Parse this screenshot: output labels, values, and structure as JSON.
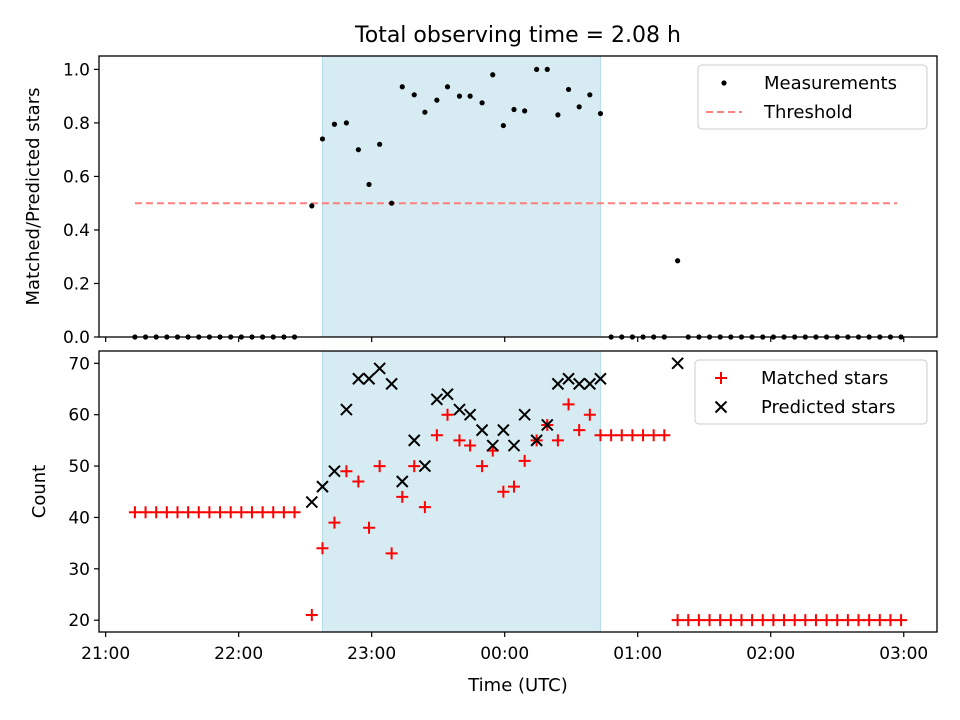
{
  "figure_title": "Total observing time = 2.08 h",
  "xlabel": "Time (UTC)",
  "xticks": [
    21,
    22,
    23,
    24,
    25,
    26,
    27
  ],
  "xtick_labels": [
    "21:00",
    "22:00",
    "23:00",
    "00:00",
    "01:00",
    "02:00",
    "03:00"
  ],
  "colors": {
    "shade": "#add8e6",
    "threshold": "#ff7f7f",
    "measurement": "#000000",
    "matched": "#ff0000",
    "predicted": "#000000"
  },
  "chart_data": [
    {
      "type": "scatter",
      "ylabel": "Matched/Predicted stars",
      "xlim": [
        20.95,
        27.25
      ],
      "ylim": [
        0,
        1.05
      ],
      "yticks": [
        0.0,
        0.2,
        0.4,
        0.6,
        0.8,
        1.0
      ],
      "ytick_labels": [
        "0.0",
        "0.2",
        "0.4",
        "0.6",
        "0.8",
        "1.0"
      ],
      "shaded_span": [
        22.63,
        24.72
      ],
      "legend_position": "top-right",
      "legend": [
        "Measurements",
        "Threshold"
      ],
      "threshold": {
        "name": "Threshold",
        "value": 0.5,
        "x": [
          21.22,
          26.95
        ]
      },
      "series": [
        {
          "name": "Measurements",
          "x": [
            21.22,
            21.3,
            21.38,
            21.46,
            21.54,
            21.62,
            21.7,
            21.78,
            21.86,
            21.94,
            22.02,
            22.1,
            22.18,
            22.26,
            22.34,
            22.42,
            22.55,
            22.63,
            22.72,
            22.81,
            22.9,
            22.98,
            23.06,
            23.15,
            23.23,
            23.32,
            23.4,
            23.49,
            23.57,
            23.66,
            23.74,
            23.83,
            23.91,
            23.99,
            24.07,
            24.15,
            24.24,
            24.32,
            24.4,
            24.48,
            24.56,
            24.64,
            24.72,
            24.8,
            24.88,
            24.96,
            25.04,
            25.12,
            25.2,
            25.3,
            25.38,
            25.46,
            25.54,
            25.62,
            25.7,
            25.78,
            25.86,
            25.94,
            26.02,
            26.1,
            26.18,
            26.26,
            26.34,
            26.42,
            26.5,
            26.58,
            26.66,
            26.74,
            26.82,
            26.9,
            26.98
          ],
          "y": [
            0,
            0,
            0,
            0,
            0,
            0,
            0,
            0,
            0,
            0,
            0,
            0,
            0,
            0,
            0,
            0,
            0.49,
            0.74,
            0.795,
            0.8,
            0.7,
            0.57,
            0.72,
            0.5,
            0.935,
            0.905,
            0.84,
            0.885,
            0.935,
            0.9,
            0.9,
            0.875,
            0.98,
            0.79,
            0.85,
            0.845,
            1.0,
            1.0,
            0.83,
            0.925,
            0.86,
            0.905,
            0.835,
            0,
            0,
            0,
            0,
            0,
            0,
            0.285,
            0,
            0,
            0,
            0,
            0,
            0,
            0,
            0,
            0,
            0,
            0,
            0,
            0,
            0,
            0,
            0,
            0,
            0,
            0,
            0,
            0
          ]
        }
      ]
    },
    {
      "type": "scatter",
      "ylabel": "Count",
      "xlim": [
        20.95,
        27.25
      ],
      "ylim": [
        17.7,
        72.4
      ],
      "yticks": [
        20,
        30,
        40,
        50,
        60,
        70
      ],
      "ytick_labels": [
        "20",
        "30",
        "40",
        "50",
        "60",
        "70"
      ],
      "shaded_span": [
        22.63,
        24.72
      ],
      "legend_position": "top-right",
      "legend": [
        "Matched stars",
        "Predicted stars"
      ],
      "series": [
        {
          "name": "Matched stars",
          "marker": "plus",
          "x": [
            21.22,
            21.3,
            21.38,
            21.46,
            21.54,
            21.62,
            21.7,
            21.78,
            21.86,
            21.94,
            22.02,
            22.1,
            22.18,
            22.26,
            22.34,
            22.42,
            22.55,
            22.63,
            22.72,
            22.81,
            22.9,
            22.98,
            23.06,
            23.15,
            23.23,
            23.32,
            23.4,
            23.49,
            23.57,
            23.66,
            23.74,
            23.83,
            23.91,
            23.99,
            24.07,
            24.15,
            24.24,
            24.32,
            24.4,
            24.48,
            24.56,
            24.64,
            24.72,
            24.8,
            24.88,
            24.96,
            25.04,
            25.12,
            25.2,
            25.3,
            25.38,
            25.46,
            25.54,
            25.62,
            25.7,
            25.78,
            25.86,
            25.94,
            26.02,
            26.1,
            26.18,
            26.26,
            26.34,
            26.42,
            26.5,
            26.58,
            26.66,
            26.74,
            26.82,
            26.9,
            26.98
          ],
          "y": [
            41,
            41,
            41,
            41,
            41,
            41,
            41,
            41,
            41,
            41,
            41,
            41,
            41,
            41,
            41,
            41,
            21,
            34,
            39,
            49,
            47,
            38,
            50,
            33,
            44,
            50,
            42,
            56,
            60,
            55,
            54,
            50,
            53,
            45,
            46,
            51,
            55,
            58,
            55,
            62,
            57,
            60,
            56,
            56,
            56,
            56,
            56,
            56,
            56,
            20,
            20,
            20,
            20,
            20,
            20,
            20,
            20,
            20,
            20,
            20,
            20,
            20,
            20,
            20,
            20,
            20,
            20,
            20,
            20,
            20,
            20
          ]
        },
        {
          "name": "Predicted stars",
          "marker": "x",
          "x": [
            22.55,
            22.63,
            22.72,
            22.81,
            22.9,
            22.98,
            23.06,
            23.15,
            23.23,
            23.32,
            23.4,
            23.49,
            23.57,
            23.66,
            23.74,
            23.83,
            23.91,
            23.99,
            24.07,
            24.15,
            24.24,
            24.32,
            24.4,
            24.48,
            24.56,
            24.64,
            24.72,
            25.3
          ],
          "y": [
            43,
            46,
            49,
            61,
            67,
            67,
            69,
            66,
            47,
            55,
            50,
            63,
            64,
            61,
            60,
            57,
            54,
            57,
            54,
            60,
            55,
            58,
            66,
            67,
            66,
            66,
            67,
            70
          ]
        }
      ]
    }
  ]
}
